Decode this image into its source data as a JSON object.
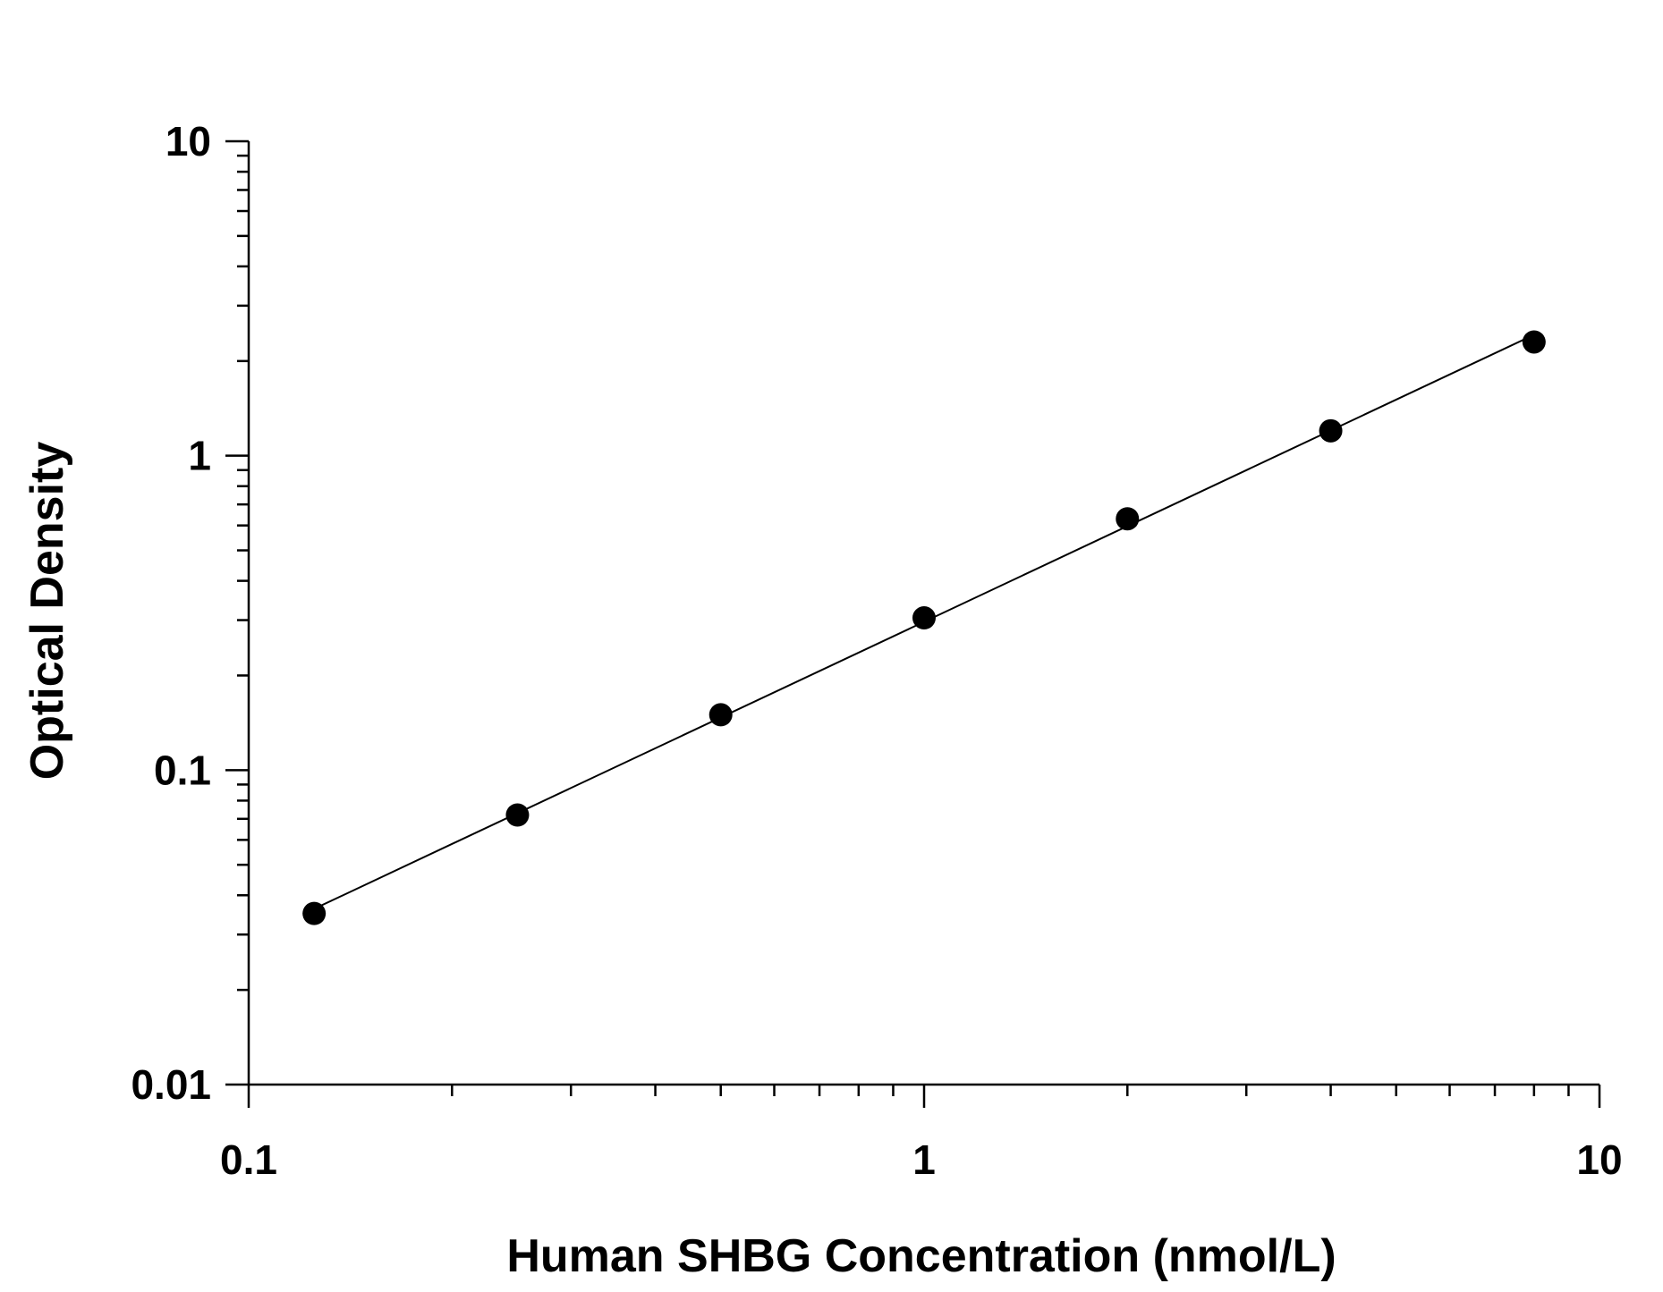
{
  "chart_data": {
    "type": "scatter",
    "title": "",
    "xlabel": "Human SHBG Concentration (nmol/L)",
    "ylabel": "Optical Density",
    "xscale": "log",
    "yscale": "log",
    "xlim": [
      0.1,
      10
    ],
    "ylim": [
      0.01,
      10
    ],
    "x_ticks": [
      "0.1",
      "1",
      "10"
    ],
    "y_ticks": [
      "0.01",
      "0.1",
      "1",
      "10"
    ],
    "grid": false,
    "legend": "none",
    "fit_line": true,
    "series": [
      {
        "x": [
          0.125,
          0.25,
          0.5,
          1,
          2,
          4,
          8
        ],
        "y": [
          0.035,
          0.072,
          0.15,
          0.305,
          0.63,
          1.2,
          2.3
        ]
      }
    ],
    "colors": {
      "marker": "#000000",
      "line": "#000000",
      "axis": "#000000"
    }
  }
}
